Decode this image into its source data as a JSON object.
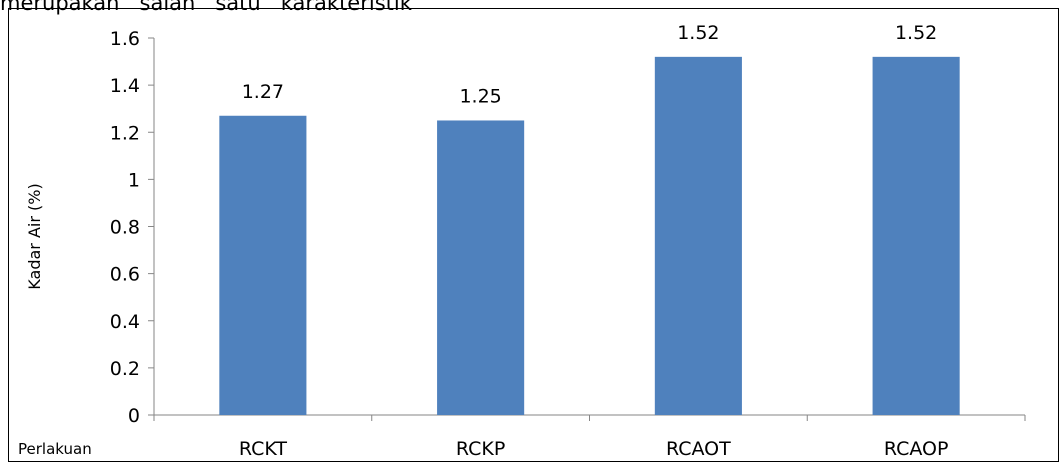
{
  "page": {
    "header_text": "merupakan   salah   satu   karakteristik"
  },
  "chart_data": {
    "type": "bar",
    "categories": [
      "RCKT",
      "RCKP",
      "RCAOT",
      "RCAOP"
    ],
    "values": [
      1.27,
      1.25,
      1.52,
      1.52
    ],
    "data_labels": [
      "1.27",
      "1.25",
      "1.52",
      "1.52"
    ],
    "xlabel": "Perlakuan",
    "ylabel": "Kadar Air  (%)",
    "ylim": [
      0,
      1.6
    ],
    "yticks": [
      "0",
      "0.2",
      "0.4",
      "0.6",
      "0.8",
      "1",
      "1.2",
      "1.4",
      "1.6"
    ],
    "grid": false,
    "legend": "none",
    "bar_color": "#4F81BD"
  }
}
